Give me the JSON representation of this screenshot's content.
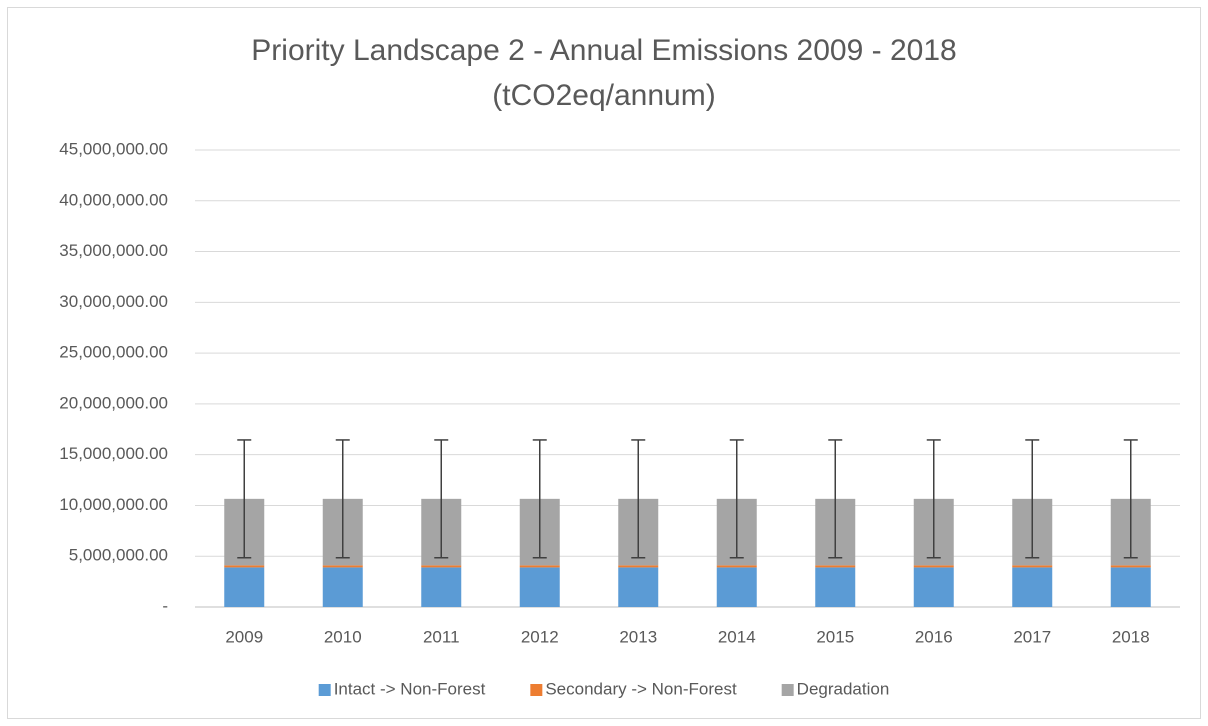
{
  "chart_data": {
    "type": "stacked_bar",
    "title": "Priority Landscape 2 - Annual Emissions 2009 - 2018",
    "subtitle": "(tCO2eq/annum)",
    "categories": [
      "2009",
      "2010",
      "2011",
      "2012",
      "2013",
      "2014",
      "2015",
      "2016",
      "2017",
      "2018"
    ],
    "series": [
      {
        "name": "Intact -> Non-Forest",
        "color": "#5b9bd5",
        "values": [
          3900000,
          3900000,
          3900000,
          3900000,
          3900000,
          3900000,
          3900000,
          3900000,
          3900000,
          3900000
        ]
      },
      {
        "name": "Secondary -> Non-Forest",
        "color": "#ed7d31",
        "values": [
          200000,
          200000,
          200000,
          200000,
          200000,
          200000,
          200000,
          200000,
          200000,
          200000
        ]
      },
      {
        "name": "Degradation",
        "color": "#a5a5a5",
        "values": [
          6550000,
          6550000,
          6550000,
          6550000,
          6550000,
          6550000,
          6550000,
          6550000,
          6550000,
          6550000
        ],
        "errors": [
          5800000,
          5800000,
          5800000,
          5800000,
          5800000,
          5800000,
          5800000,
          5800000,
          5800000,
          5800000
        ]
      }
    ],
    "ylim": [
      0,
      45000000
    ],
    "yticks": [
      {
        "value": 0,
        "label": "-"
      },
      {
        "value": 5000000,
        "label": "5,000,000.00"
      },
      {
        "value": 10000000,
        "label": "10,000,000.00"
      },
      {
        "value": 15000000,
        "label": "15,000,000.00"
      },
      {
        "value": 20000000,
        "label": "20,000,000.00"
      },
      {
        "value": 25000000,
        "label": "25,000,000.00"
      },
      {
        "value": 30000000,
        "label": "30,000,000.00"
      },
      {
        "value": 35000000,
        "label": "35,000,000.00"
      },
      {
        "value": 40000000,
        "label": "40,000,000.00"
      },
      {
        "value": 45000000,
        "label": "45,000,000.00"
      }
    ],
    "grid": true,
    "legend": "bottom"
  }
}
